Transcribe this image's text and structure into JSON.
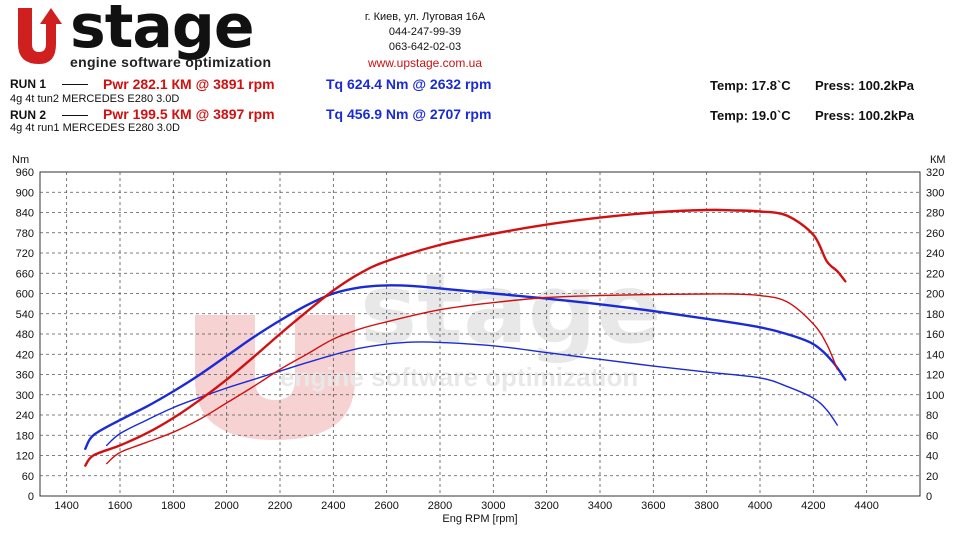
{
  "header": {
    "logo_word": "stage",
    "logo_tagline": "engine software optimization",
    "address": "г. Киев, ул. Луговая 16А",
    "phone1": "044-247-99-39",
    "phone2": "063-642-02-03",
    "website": "www.upstage.com.ua"
  },
  "runs": [
    {
      "label": "RUN 1",
      "desc": "4g 4t tun2 MERCEDES E280 3.0D",
      "pwr": "Pwr  282.1 КМ @ 3891 rpm",
      "tq": "Tq 624.4 Nm @ 2632 rpm",
      "temp": "Temp: 17.8`C",
      "press": "Press: 100.2kPa"
    },
    {
      "label": "RUN 2",
      "desc": "4g 4t run1 MERCEDES E280 3.0D",
      "pwr": "Pwr  199.5 КМ @ 3897 rpm",
      "tq": "Tq 456.9 Nm @ 2707 rpm",
      "temp": "Temp: 19.0`C",
      "press": "Press: 100.2kPa"
    }
  ],
  "colors": {
    "power": "#d11111",
    "torque": "#1a2bd6",
    "grid": "#555555",
    "watermark": "#e8a0a0"
  },
  "chart_data": {
    "type": "line",
    "xlabel": "Eng RPM [rpm]",
    "ylabel_left": "Nm",
    "ylabel_right": "КМ",
    "xlim": [
      1300,
      4600
    ],
    "xticks": [
      1400,
      1600,
      1800,
      2000,
      2200,
      2400,
      2600,
      2800,
      3000,
      3200,
      3400,
      3600,
      3800,
      4000,
      4200,
      4400
    ],
    "ylim_left": [
      0,
      960
    ],
    "ylim_right": [
      0,
      320
    ],
    "yticks_left": [
      0,
      60,
      120,
      180,
      240,
      300,
      360,
      420,
      480,
      540,
      600,
      660,
      720,
      780,
      840,
      900,
      960
    ],
    "yticks_right": [
      0,
      20,
      40,
      60,
      80,
      100,
      120,
      140,
      160,
      180,
      200,
      220,
      240,
      260,
      280,
      300,
      320
    ],
    "grid": true,
    "series": [
      {
        "name": "RUN 1 Tq",
        "axis": "left",
        "color": "#1a2bd6",
        "width": 2.4,
        "points": [
          [
            1470,
            140
          ],
          [
            1500,
            180
          ],
          [
            1600,
            225
          ],
          [
            1700,
            265
          ],
          [
            1800,
            310
          ],
          [
            1900,
            360
          ],
          [
            2000,
            415
          ],
          [
            2100,
            470
          ],
          [
            2200,
            520
          ],
          [
            2300,
            565
          ],
          [
            2400,
            600
          ],
          [
            2500,
            618
          ],
          [
            2600,
            624
          ],
          [
            2700,
            622
          ],
          [
            2800,
            615
          ],
          [
            3000,
            600
          ],
          [
            3200,
            585
          ],
          [
            3400,
            568
          ],
          [
            3600,
            548
          ],
          [
            3800,
            525
          ],
          [
            4000,
            500
          ],
          [
            4100,
            480
          ],
          [
            4200,
            450
          ],
          [
            4270,
            400
          ],
          [
            4320,
            345
          ]
        ]
      },
      {
        "name": "RUN 2 Tq",
        "axis": "left",
        "color": "#1a2bd6",
        "width": 1.4,
        "points": [
          [
            1550,
            150
          ],
          [
            1600,
            185
          ],
          [
            1700,
            225
          ],
          [
            1800,
            262
          ],
          [
            1900,
            292
          ],
          [
            2000,
            320
          ],
          [
            2100,
            345
          ],
          [
            2200,
            370
          ],
          [
            2300,
            395
          ],
          [
            2400,
            418
          ],
          [
            2500,
            438
          ],
          [
            2600,
            450
          ],
          [
            2700,
            456
          ],
          [
            2800,
            455
          ],
          [
            3000,
            445
          ],
          [
            3200,
            425
          ],
          [
            3400,
            405
          ],
          [
            3600,
            385
          ],
          [
            3800,
            367
          ],
          [
            4000,
            350
          ],
          [
            4100,
            325
          ],
          [
            4200,
            290
          ],
          [
            4250,
            255
          ],
          [
            4290,
            210
          ]
        ]
      },
      {
        "name": "RUN 1 Pwr",
        "axis": "right",
        "color": "#d11111",
        "width": 2.4,
        "points": [
          [
            1470,
            30
          ],
          [
            1500,
            40
          ],
          [
            1600,
            50
          ],
          [
            1700,
            62
          ],
          [
            1800,
            77
          ],
          [
            1900,
            95
          ],
          [
            2000,
            115
          ],
          [
            2100,
            137
          ],
          [
            2200,
            160
          ],
          [
            2300,
            182
          ],
          [
            2400,
            203
          ],
          [
            2500,
            220
          ],
          [
            2600,
            232
          ],
          [
            2800,
            248
          ],
          [
            3000,
            259
          ],
          [
            3200,
            268
          ],
          [
            3400,
            275
          ],
          [
            3600,
            280
          ],
          [
            3800,
            282.5
          ],
          [
            3900,
            282.1
          ],
          [
            4000,
            281
          ],
          [
            4100,
            277
          ],
          [
            4200,
            258
          ],
          [
            4250,
            232
          ],
          [
            4290,
            222
          ],
          [
            4320,
            212
          ]
        ]
      },
      {
        "name": "RUN 2 Pwr",
        "axis": "right",
        "color": "#d11111",
        "width": 1.4,
        "points": [
          [
            1550,
            32
          ],
          [
            1600,
            43
          ],
          [
            1700,
            53
          ],
          [
            1800,
            63
          ],
          [
            1900,
            76
          ],
          [
            2000,
            92
          ],
          [
            2100,
            108
          ],
          [
            2200,
            125
          ],
          [
            2300,
            140
          ],
          [
            2400,
            155
          ],
          [
            2500,
            165
          ],
          [
            2600,
            172
          ],
          [
            2800,
            184
          ],
          [
            3000,
            191
          ],
          [
            3200,
            196
          ],
          [
            3400,
            198
          ],
          [
            3600,
            199
          ],
          [
            3800,
            199.5
          ],
          [
            3900,
            199.5
          ],
          [
            4000,
            198
          ],
          [
            4100,
            192
          ],
          [
            4200,
            170
          ],
          [
            4250,
            150
          ],
          [
            4290,
            125
          ]
        ]
      }
    ]
  }
}
